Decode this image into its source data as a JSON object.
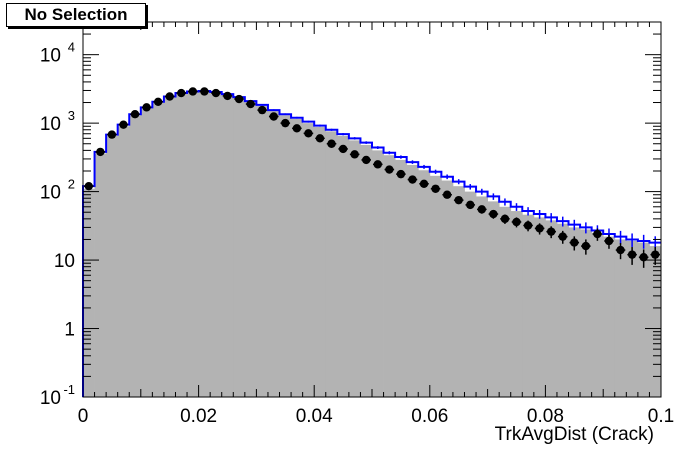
{
  "chart_data": {
    "type": "histogram",
    "title": "No Selection",
    "xlabel": "TrkAvgDist (Crack)",
    "ylabel": "",
    "xlim": [
      0,
      0.1
    ],
    "ylim": [
      0.1,
      30000
    ],
    "yscale": "log",
    "grid": false,
    "x_ticks": [
      "0",
      "0.02",
      "0.04",
      "0.06",
      "0.08",
      "0.1"
    ],
    "x_tick_values": [
      0,
      0.02,
      0.04,
      0.06,
      0.08,
      0.1
    ],
    "y_tick_values": [
      0.1,
      1,
      10,
      100,
      1000,
      10000
    ],
    "bin_edges": [
      0,
      0.002,
      0.004,
      0.006,
      0.008,
      0.01,
      0.012,
      0.014,
      0.016,
      0.018,
      0.02,
      0.022,
      0.024,
      0.026,
      0.028,
      0.03,
      0.032,
      0.034,
      0.036,
      0.038,
      0.04,
      0.042,
      0.044,
      0.046,
      0.048,
      0.05,
      0.052,
      0.054,
      0.056,
      0.058,
      0.06,
      0.062,
      0.064,
      0.066,
      0.068,
      0.07,
      0.072,
      0.074,
      0.076,
      0.078,
      0.08,
      0.082,
      0.084,
      0.086,
      0.088,
      0.09,
      0.092,
      0.094,
      0.096,
      0.098,
      0.1
    ],
    "series": [
      {
        "kind": "filled",
        "color": "#b3b3b3",
        "values": [
          110,
          360,
          650,
          900,
          1300,
          1650,
          2000,
          2400,
          2700,
          2850,
          2900,
          2800,
          2600,
          2350,
          2050,
          1800,
          1500,
          1300,
          1150,
          1000,
          880,
          760,
          650,
          560,
          480,
          400,
          340,
          290,
          245,
          205,
          170,
          145,
          120,
          100,
          85,
          72,
          60,
          52,
          46,
          42,
          38,
          34,
          30,
          28,
          25,
          22,
          20,
          19,
          18,
          16
        ]
      },
      {
        "kind": "step",
        "color": "#0000ff",
        "values": [
          120,
          380,
          680,
          950,
          1350,
          1700,
          2050,
          2450,
          2750,
          2900,
          2950,
          2850,
          2650,
          2400,
          2100,
          1850,
          1550,
          1350,
          1200,
          1050,
          920,
          800,
          690,
          600,
          520,
          440,
          370,
          320,
          270,
          230,
          195,
          165,
          140,
          118,
          100,
          85,
          71,
          60,
          52,
          47,
          42,
          37,
          33,
          30,
          27,
          24,
          22,
          20,
          19,
          18
        ]
      },
      {
        "kind": "points",
        "color": "#000000",
        "values": [
          120,
          380,
          680,
          950,
          1350,
          1700,
          2050,
          2450,
          2750,
          2900,
          2900,
          2750,
          2500,
          2250,
          1900,
          1550,
          1250,
          1000,
          840,
          710,
          600,
          500,
          420,
          350,
          290,
          250,
          210,
          180,
          150,
          130,
          110,
          90,
          75,
          64,
          55,
          47,
          40,
          36,
          32,
          29,
          26,
          22,
          18,
          16,
          24,
          19,
          14,
          12,
          11,
          12
        ],
        "errors": [
          11,
          19,
          26,
          31,
          37,
          41,
          45,
          49,
          52,
          54,
          54,
          52,
          50,
          47,
          44,
          39,
          35,
          32,
          29,
          27,
          24,
          22,
          20,
          19,
          17,
          16,
          14,
          13,
          12,
          11,
          10,
          9.5,
          8.7,
          8,
          7.4,
          6.9,
          6.3,
          6,
          5.7,
          5.4,
          5.1,
          4.7,
          4.2,
          4,
          4.9,
          4.4,
          3.7,
          3.5,
          3.3,
          3.5
        ]
      }
    ]
  }
}
